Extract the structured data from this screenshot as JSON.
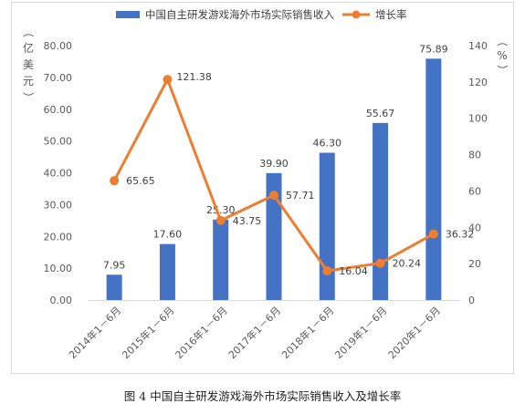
{
  "caption": "图 4 中国自主研发游戏海外市场实际销售收入及增长率",
  "chart_data": {
    "type": "bar+line",
    "categories": [
      "2014年1－6月",
      "2015年1－6月",
      "2016年1－6月",
      "2017年1－6月",
      "2018年1－6月",
      "2019年1－6月",
      "2020年1－6月"
    ],
    "series": [
      {
        "name": "中国自主研发游戏海外市场实际销售收入",
        "type": "bar",
        "axis": "left",
        "color": "#4472C4",
        "values": [
          7.95,
          17.6,
          25.3,
          39.9,
          46.3,
          55.67,
          75.89
        ],
        "labels": [
          "7.95",
          "17.60",
          "25.30",
          "39.90",
          "46.30",
          "55.67",
          "75.89"
        ]
      },
      {
        "name": "增长率",
        "type": "line",
        "axis": "right",
        "color": "#ED7D31",
        "values": [
          65.65,
          121.38,
          43.75,
          57.71,
          16.04,
          20.24,
          36.32
        ],
        "labels": [
          "65.65",
          "121.38",
          "43.75",
          "57.71",
          "16.04",
          "20.24",
          "36.32"
        ]
      }
    ],
    "y_left": {
      "label": "（亿美元）",
      "range": [
        0,
        80
      ],
      "ticks": [
        "0.00",
        "10.00",
        "20.00",
        "30.00",
        "40.00",
        "50.00",
        "60.00",
        "70.00",
        "80.00"
      ]
    },
    "y_right": {
      "label": "（%）",
      "range": [
        0,
        140
      ],
      "ticks": [
        "0",
        "20",
        "40",
        "60",
        "80",
        "100",
        "120",
        "140"
      ]
    },
    "grid": false,
    "legend_position": "top"
  }
}
